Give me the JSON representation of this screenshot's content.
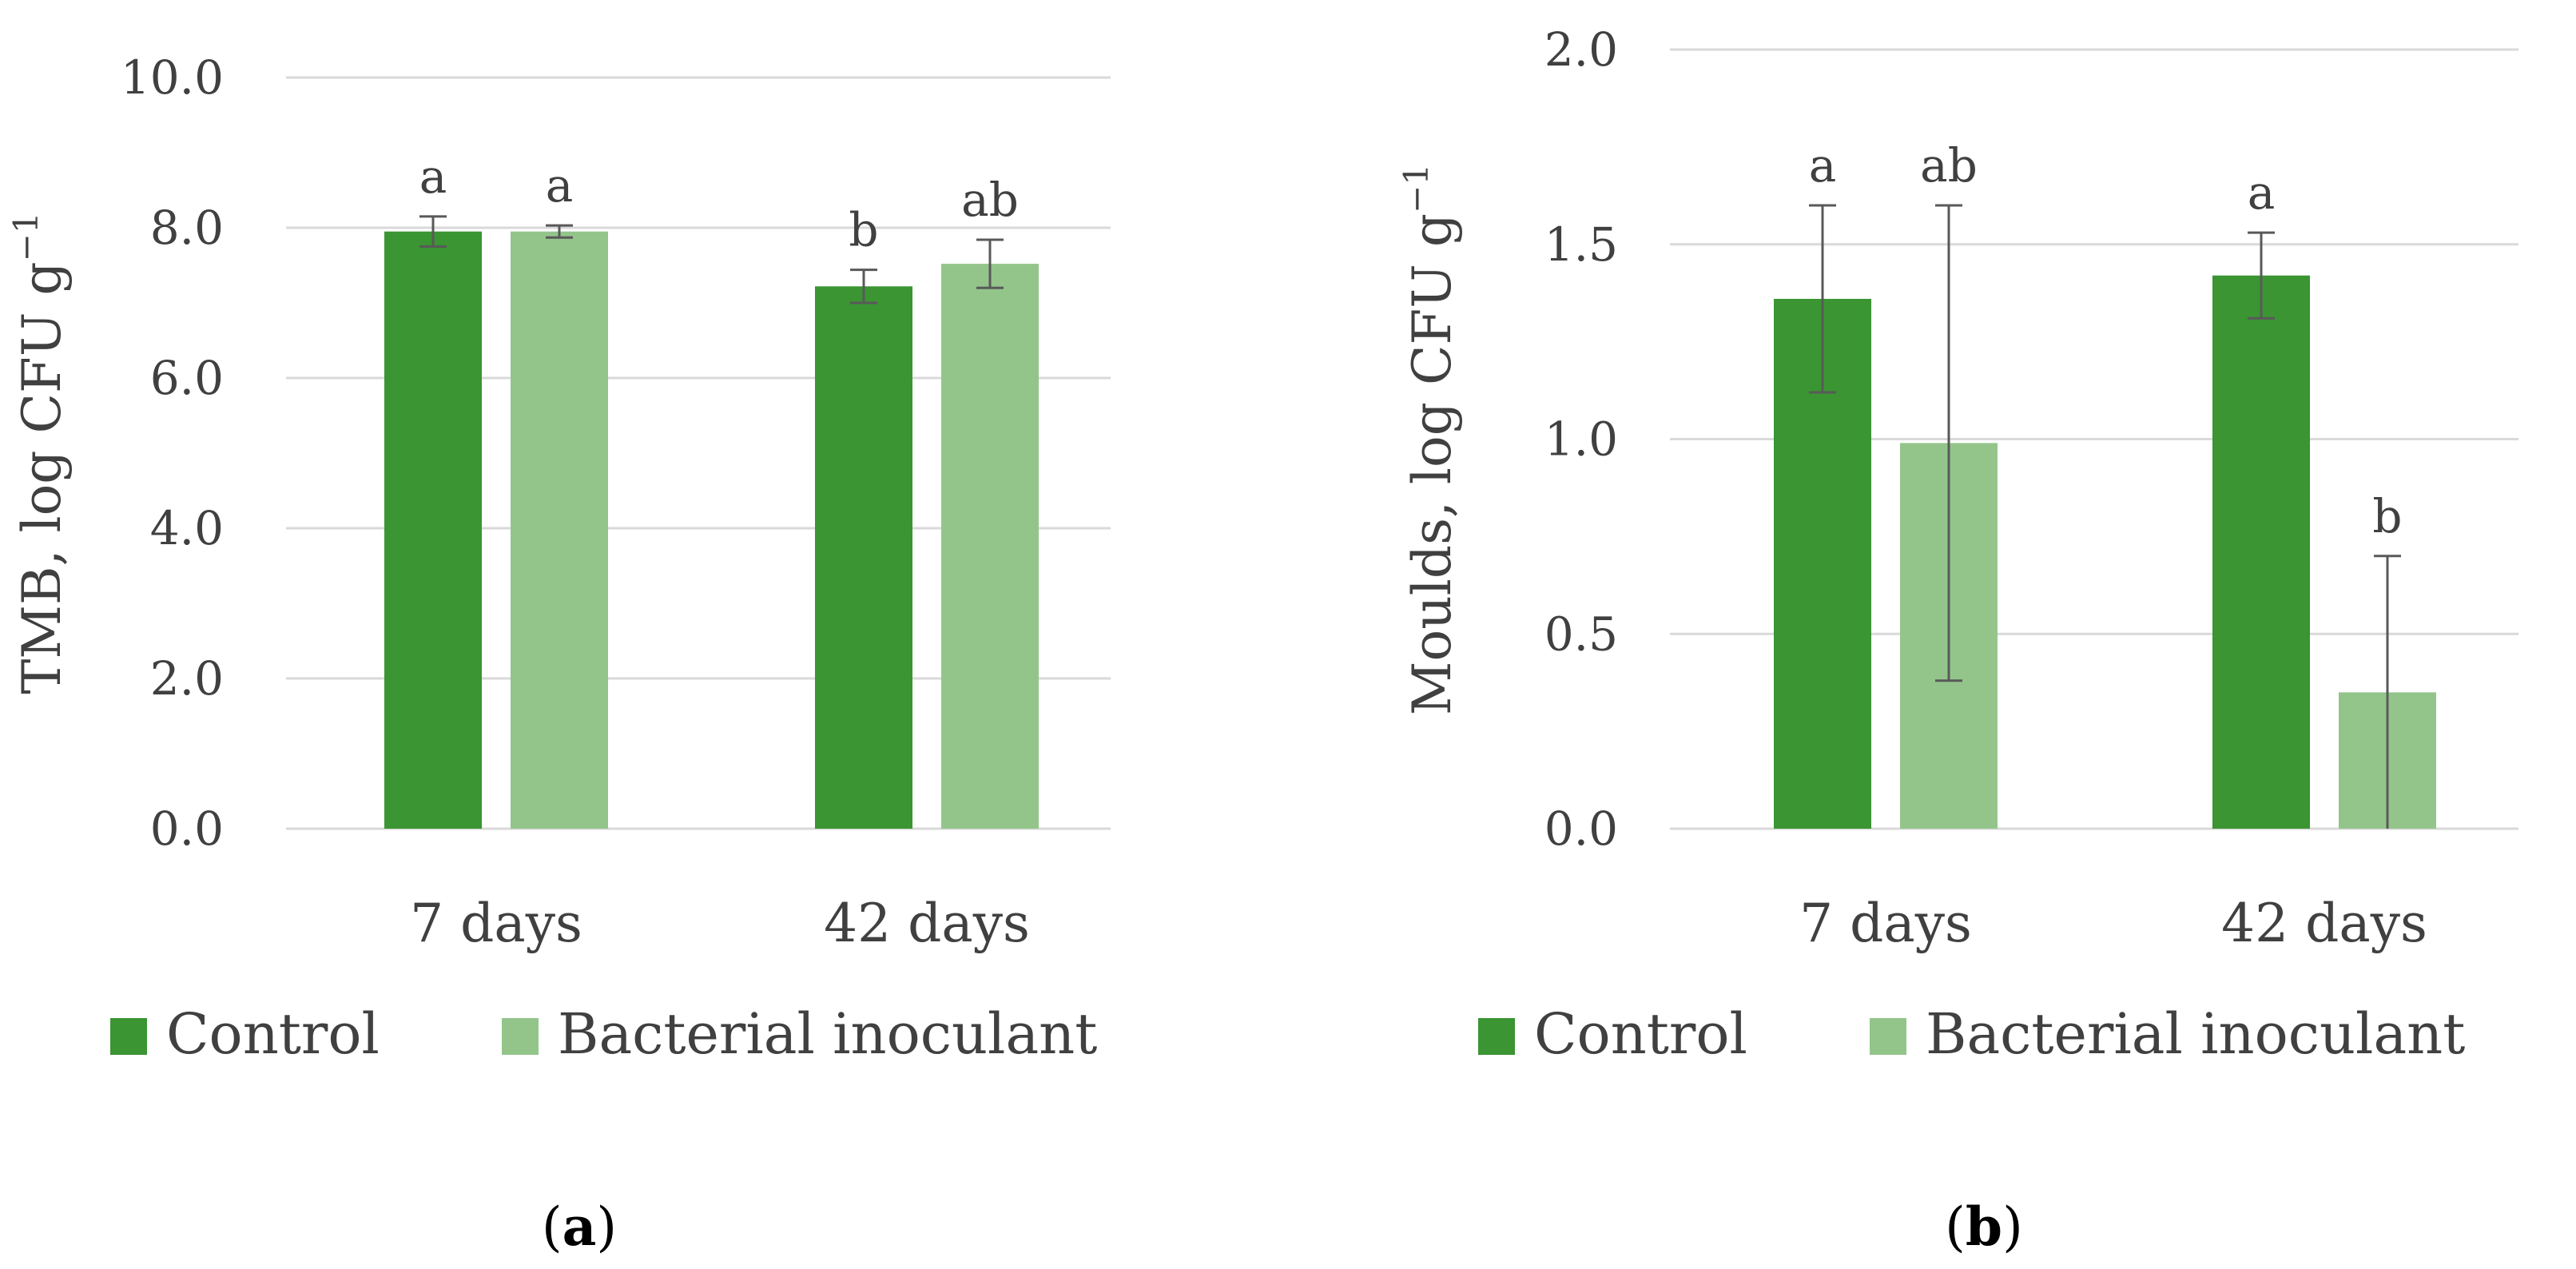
{
  "colors": {
    "control": "#3a9532",
    "inoculant": "#93c58b",
    "grid": "#d9d9d9",
    "errorbar": "#595959"
  },
  "chart_data": [
    {
      "type": "bar",
      "panel": "a",
      "ylabel": "TMB, log CFU g",
      "ylabel_sup": "−1",
      "ylim": [
        0,
        10
      ],
      "yticks": [
        0,
        2,
        4,
        6,
        8,
        10
      ],
      "ytick_labels": [
        "0.0",
        "2.0",
        "4.0",
        "6.0",
        "8.0",
        "10.0"
      ],
      "categories": [
        "7 days",
        "42 days"
      ],
      "series": [
        {
          "name": "Control",
          "values": [
            7.95,
            7.22
          ],
          "errors": [
            0.2,
            0.22
          ],
          "labels": [
            "a",
            "b"
          ]
        },
        {
          "name": "Bacterial inoculant",
          "values": [
            7.95,
            7.52
          ],
          "errors": [
            0.08,
            0.32
          ],
          "labels": [
            "a",
            "ab"
          ]
        }
      ],
      "legend": [
        "Control",
        "Bacterial inoculant"
      ],
      "legend_position": "bottom"
    },
    {
      "type": "bar",
      "panel": "b",
      "ylabel": "Moulds, log CFU g",
      "ylabel_sup": "−1",
      "ylim": [
        0,
        2
      ],
      "yticks": [
        0,
        0.5,
        1,
        1.5,
        2
      ],
      "ytick_labels": [
        "0.0",
        "0.5",
        "1.0",
        "1.5",
        "2.0"
      ],
      "categories": [
        "7 days",
        "42 days"
      ],
      "series": [
        {
          "name": "Control",
          "values": [
            1.36,
            1.42
          ],
          "errors": [
            0.24,
            0.11
          ],
          "labels": [
            "a",
            "a"
          ]
        },
        {
          "name": "Bacterial inoculant",
          "values": [
            0.99,
            0.35
          ],
          "errors": [
            0.61,
            0.35
          ],
          "labels": [
            "ab",
            "b"
          ]
        }
      ],
      "legend": [
        "Control",
        "Bacterial inoculant"
      ],
      "legend_position": "bottom"
    }
  ],
  "captions": [
    {
      "open": "(",
      "letter": "a",
      "close": ")"
    },
    {
      "open": "(",
      "letter": "b",
      "close": ")"
    }
  ]
}
